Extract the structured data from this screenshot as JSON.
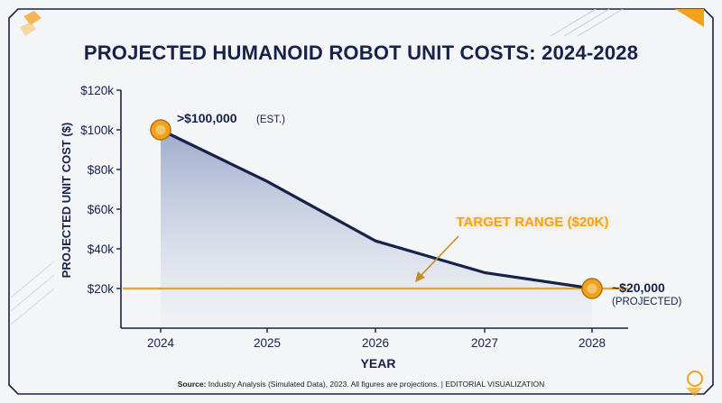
{
  "title": "PROJECTED HUMANOID ROBOT UNIT COSTS: 2024-2028",
  "source_label": "Source:",
  "source_text": "Industry Analysis (Simulated Data), 2023. All figures are projections. | EDITORIAL VISUALIZATION",
  "colors": {
    "navy": "#16224a",
    "accent": "#f0a21f",
    "area_top": "#8f9ec4",
    "background": "#f4f5f7"
  },
  "chart_data": {
    "type": "area",
    "title": "PROJECTED HUMANOID ROBOT UNIT COSTS: 2024-2028",
    "xlabel": "YEAR",
    "ylabel": "PROJECTED UNIT COST ($)",
    "x": [
      2024,
      2025,
      2026,
      2027,
      2028
    ],
    "x_tick_labels": [
      "2024",
      "2025",
      "2026",
      "2027",
      "2028"
    ],
    "values": [
      100000,
      74000,
      44000,
      28000,
      20000
    ],
    "ylim": [
      10000,
      120000
    ],
    "y_ticks": [
      20000,
      40000,
      60000,
      80000,
      100000,
      120000
    ],
    "y_tick_labels": [
      "$20k",
      "$40k",
      "$60k",
      "$80k",
      "$100k",
      "$120k"
    ],
    "grid": false,
    "target_line": {
      "value": 20000,
      "label": "TARGET RANGE ($20K)"
    },
    "annotations": [
      {
        "x": 2024,
        "y": 100000,
        "text": ">$100,000",
        "suffix": "(EST.)"
      },
      {
        "x": 2028,
        "y": 20000,
        "text": "~$20,000",
        "suffix": "(PROJECTED)"
      }
    ]
  }
}
